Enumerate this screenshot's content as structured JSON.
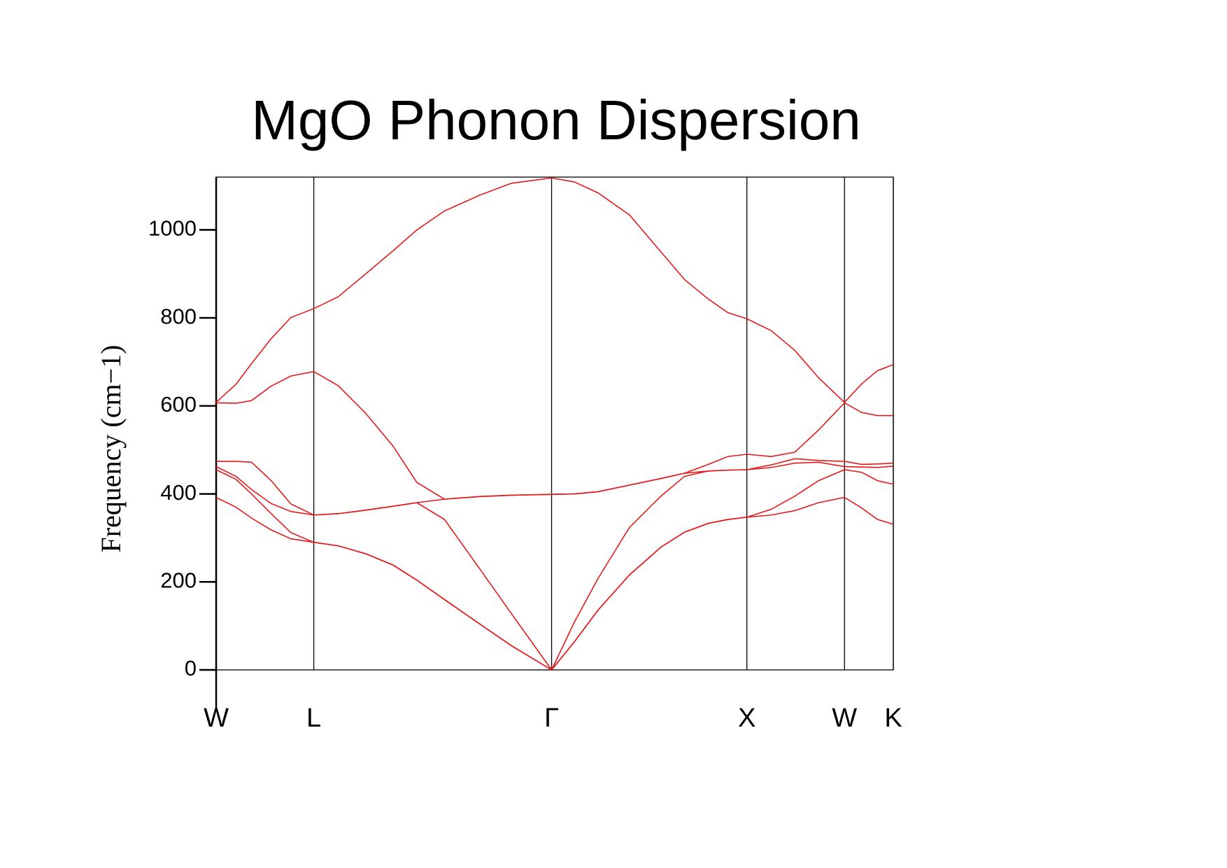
{
  "chart_data": {
    "type": "line",
    "title": "MgO Phonon Dispersion",
    "y_label": "Frequency (cm−1)",
    "x": [
      0,
      0.101,
      0.181,
      0.282,
      0.383,
      0.5,
      0.625,
      0.766,
      0.907,
      1.028,
      1.169,
      1.351,
      1.512,
      1.718,
      1.835,
      1.956,
      2.117,
      2.278,
      2.399,
      2.52,
      2.621,
      2.718,
      2.843,
      2.964,
      3.085,
      3.218,
      3.306,
      3.387,
      3.468
    ],
    "series": [
      {
        "color": "#e41a1c",
        "values": [
          392,
          370,
          345,
          318,
          298,
          290,
          282,
          264,
          238,
          204,
          160,
          104,
          55,
          0,
          64,
          136,
          216,
          279,
          313,
          333,
          342,
          347,
          352,
          362,
          380,
          392,
          368,
          342,
          331
        ]
      },
      {
        "color": "#e41a1c",
        "values": [
          455,
          433,
          400,
          355,
          312,
          290,
          282,
          264,
          238,
          204,
          160,
          104,
          55,
          0,
          64,
          136,
          216,
          279,
          313,
          333,
          342,
          347,
          365,
          395,
          430,
          455,
          449,
          430,
          422
        ]
      },
      {
        "color": "#e41a1c",
        "values": [
          462,
          440,
          410,
          378,
          360,
          352,
          355,
          363,
          372,
          380,
          342,
          229,
          128,
          0,
          109,
          208,
          324,
          395,
          440,
          452,
          454,
          455,
          460,
          470,
          472,
          462,
          461,
          460,
          463
        ]
      },
      {
        "color": "#e41a1c",
        "values": [
          474,
          474,
          472,
          430,
          377,
          352,
          355,
          363,
          372,
          380,
          388,
          394,
          397,
          399,
          400,
          405,
          420,
          435,
          447,
          452,
          454,
          455,
          466,
          480,
          476,
          474,
          467,
          468,
          470
        ]
      },
      {
        "color": "#e41a1c",
        "values": [
          607,
          606,
          612,
          645,
          668,
          678,
          646,
          583,
          508,
          426,
          388,
          394,
          397,
          399,
          400,
          405,
          420,
          435,
          447,
          467,
          485,
          490,
          485,
          495,
          545,
          607,
          585,
          578,
          578
        ]
      },
      {
        "color": "#e41a1c",
        "values": [
          608,
          649,
          696,
          753,
          801,
          821,
          848,
          900,
          953,
          1000,
          1043,
          1079,
          1106,
          1118,
          1109,
          1084,
          1034,
          950,
          887,
          843,
          812,
          798,
          771,
          726,
          664,
          608,
          650,
          680,
          694
        ]
      }
    ],
    "xlim": [
      0,
      3.468
    ],
    "xticks": [
      {
        "value": 0,
        "label": "W"
      },
      {
        "value": 0.5,
        "label": "L"
      },
      {
        "value": 1.718,
        "label": "Γ"
      },
      {
        "value": 2.718,
        "label": "X"
      },
      {
        "value": 3.218,
        "label": "W"
      },
      {
        "value": 3.468,
        "label": "K"
      }
    ],
    "ylim": [
      0,
      1120
    ],
    "yticks": [
      0,
      200,
      400,
      600,
      800,
      1000
    ],
    "grid": true
  }
}
